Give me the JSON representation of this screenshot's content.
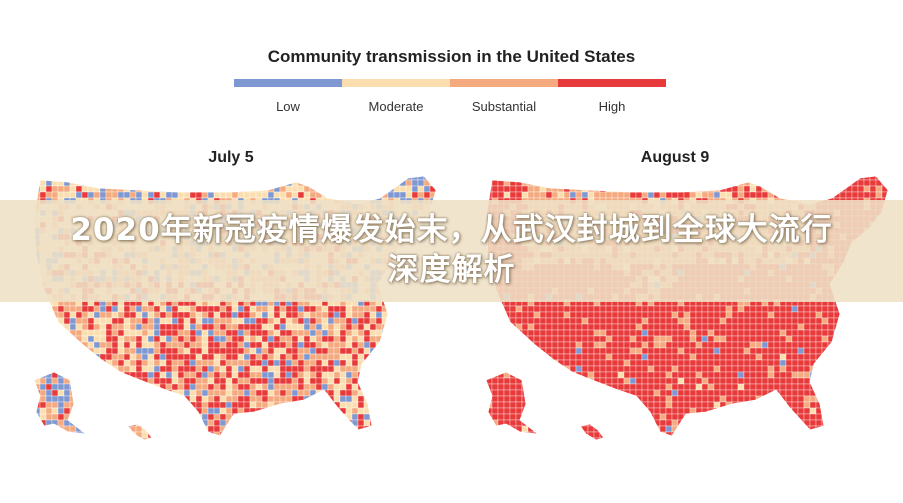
{
  "header": {
    "title": "Community transmission in the United States"
  },
  "legend": {
    "items": [
      {
        "label": "Low",
        "color": "#7f98d1"
      },
      {
        "label": "Moderate",
        "color": "#fbdeb0"
      },
      {
        "label": "Substantial",
        "color": "#f5a97f"
      },
      {
        "label": "High",
        "color": "#e83a3a"
      }
    ]
  },
  "maps": [
    {
      "title": "July 5",
      "dominant_levels": [
        "Moderate",
        "Substantial",
        "High",
        "Low"
      ]
    },
    {
      "title": "August 9",
      "dominant_levels": [
        "High",
        "Substantial"
      ]
    }
  ],
  "banner": {
    "line1": "2020年新冠疫情爆发始末，从武汉封城到全球大流行",
    "line2": "深度解析"
  }
}
